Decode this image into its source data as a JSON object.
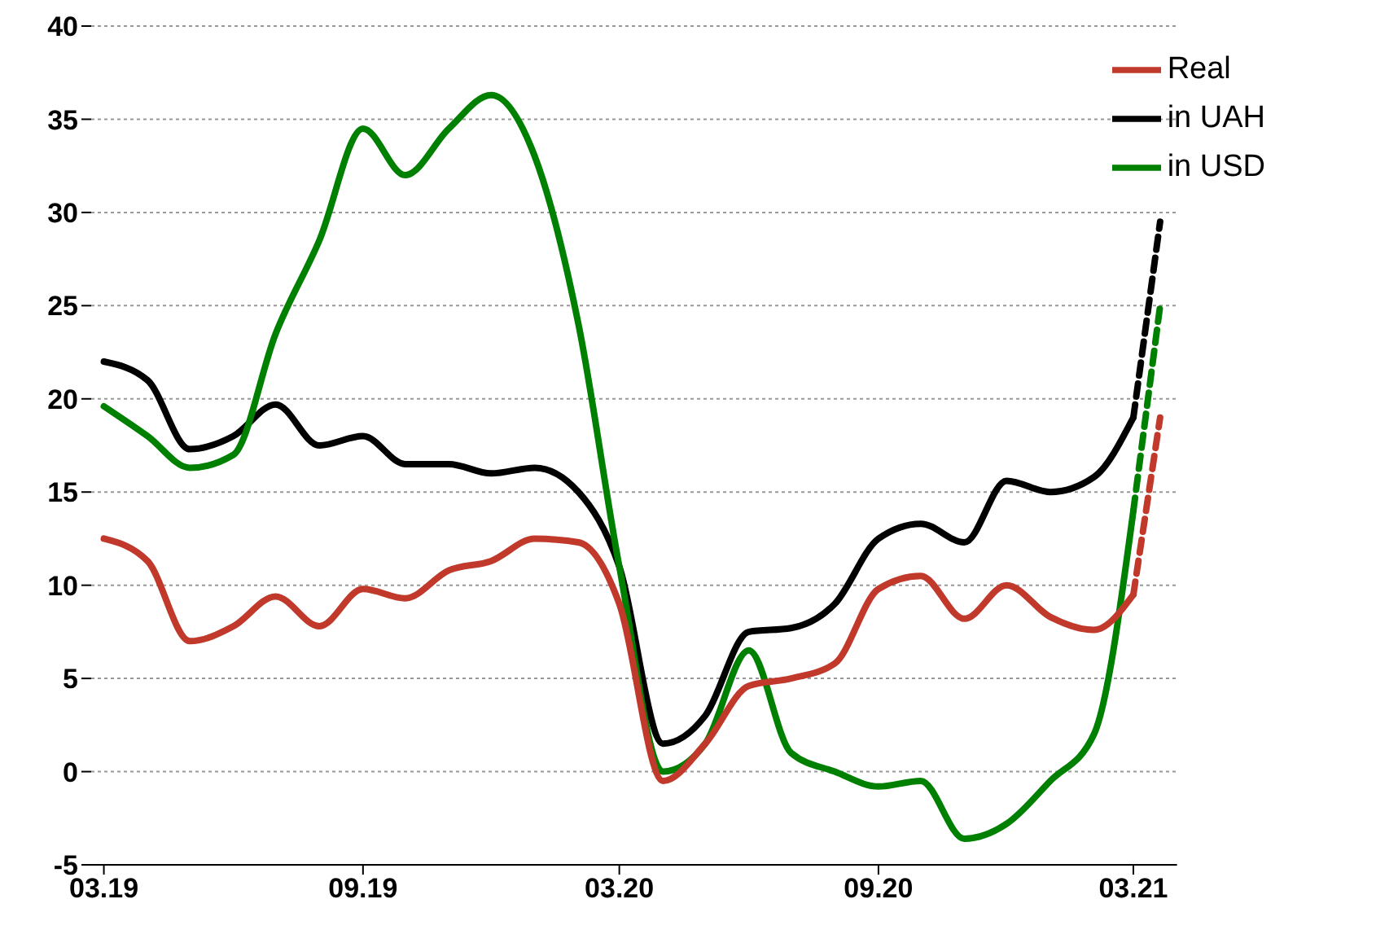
{
  "chart_data": {
    "type": "line",
    "x": [
      "2019-03",
      "2019-04",
      "2019-05",
      "2019-06",
      "2019-07",
      "2019-08",
      "2019-09",
      "2019-10",
      "2019-11",
      "2019-12",
      "2020-01",
      "2020-02",
      "2020-03",
      "2020-04",
      "2020-05",
      "2020-06",
      "2020-07",
      "2020-08",
      "2020-09",
      "2020-10",
      "2020-11",
      "2020-12",
      "2021-01",
      "2021-02",
      "2021-03"
    ],
    "series": [
      {
        "name": "in UAH",
        "color": "#000000",
        "values": [
          22,
          21,
          17.3,
          18,
          19.7,
          17.5,
          18,
          16.5,
          16.5,
          16,
          16.3,
          15,
          11,
          1.5,
          3,
          7.5,
          7.7,
          9,
          12.5,
          13.3,
          12.3,
          15.6,
          15,
          15.8,
          19
        ]
      },
      {
        "name": "in USD",
        "color": "#008000",
        "values": [
          19.6,
          18,
          16.3,
          17,
          23.5,
          28.5,
          34.5,
          32,
          34.5,
          36.3,
          33,
          24,
          11,
          0,
          1.5,
          6.5,
          1,
          0,
          -0.8,
          -0.5,
          -3.6,
          -2.8,
          -0.5,
          2,
          14
        ]
      },
      {
        "name": "Real",
        "color": "#c0392b",
        "values": [
          12.5,
          11.3,
          7,
          7.8,
          9.4,
          7.8,
          9.8,
          9.3,
          10.8,
          11.3,
          12.5,
          12.3,
          9,
          -0.5,
          1.5,
          4.6,
          5,
          5.8,
          9.8,
          10.5,
          8.2,
          10,
          8.3,
          7.6,
          9.5
        ]
      },
      {
        "color": "#000000",
        "line_style": "dashed",
        "x": [
          "2021-03",
          "2021-03-20"
        ],
        "values": [
          19,
          29.5
        ]
      },
      {
        "color": "#008000",
        "line_style": "dashed",
        "x": [
          "2021-03",
          "2021-03-20"
        ],
        "values": [
          14,
          25
        ]
      },
      {
        "color": "#c0392b",
        "line_style": "dashed",
        "x": [
          "2021-03",
          "2021-03-20"
        ],
        "values": [
          9.5,
          19
        ]
      }
    ],
    "xlim": [
      "2019-02-20",
      "2021-04-01"
    ],
    "xticks": [
      {
        "value": "2019-03",
        "label": "03.19"
      },
      {
        "value": "2019-09",
        "label": "09.19"
      },
      {
        "value": "2020-03",
        "label": "03.20"
      },
      {
        "value": "2020-09",
        "label": "09.20"
      },
      {
        "value": "2021-03",
        "label": "03.21"
      }
    ],
    "ylim": [
      -5,
      40
    ],
    "yticks": [
      -5,
      0,
      5,
      10,
      15,
      20,
      25,
      30,
      35,
      40
    ],
    "grid": "y",
    "legend": "top right",
    "marker": "none",
    "line_style": "solid"
  }
}
